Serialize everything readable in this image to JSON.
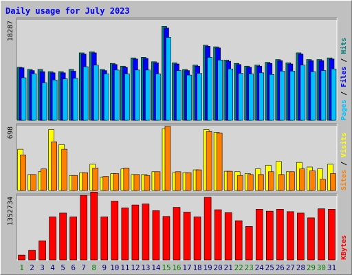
{
  "chart_data": {
    "type": "bar",
    "title": "Daily usage for July 2023",
    "categories": [
      "1",
      "2",
      "3",
      "4",
      "5",
      "6",
      "7",
      "8",
      "9",
      "10",
      "11",
      "12",
      "13",
      "14",
      "15",
      "16",
      "17",
      "18",
      "19",
      "20",
      "21",
      "22",
      "23",
      "24",
      "25",
      "26",
      "27",
      "28",
      "29",
      "30",
      "31"
    ],
    "weekend_days": [
      "1",
      "8",
      "15",
      "16",
      "22",
      "23",
      "29",
      "30"
    ],
    "panels": [
      {
        "id": "hits",
        "y_tick_label": "18287",
        "ylim": [
          0,
          18287
        ],
        "ylabel_parts": [
          "Pages",
          "Files",
          "Hits"
        ],
        "separator": " / ",
        "series": [
          {
            "name": "Hits",
            "color": "#008080",
            "values": [
              9600,
              9200,
              9200,
              8800,
              8800,
              9200,
              12200,
              12400,
              9200,
              10300,
              9800,
              11300,
              11400,
              10600,
              17000,
              10400,
              9200,
              10000,
              13600,
              13300,
              10900,
              10300,
              9800,
              10000,
              10500,
              11000,
              10400,
              12200,
              11000,
              11000,
              11300
            ]
          },
          {
            "name": "Files",
            "color": "#0000ff",
            "values": [
              9500,
              9000,
              8800,
              8600,
              8600,
              8900,
              12000,
              12200,
              9000,
              10100,
              9600,
              11100,
              11200,
              10400,
              16700,
              10200,
              9000,
              9800,
              13400,
              13100,
              10700,
              10100,
              9600,
              9800,
              10300,
              10800,
              10200,
              12000,
              10800,
              10800,
              11100
            ]
          },
          {
            "name": "Pages",
            "color": "#00c0ff",
            "values": [
              7700,
              8400,
              6800,
              7300,
              7500,
              7600,
              9700,
              10000,
              8400,
              9100,
              8400,
              9100,
              9100,
              8400,
              15000,
              9000,
              8200,
              8500,
              11400,
              10900,
              9300,
              8500,
              8400,
              8600,
              8300,
              8900,
              8900,
              10000,
              8800,
              9000,
              9300
            ]
          }
        ]
      },
      {
        "id": "visits",
        "y_tick_label": "698",
        "ylim": [
          0,
          698
        ],
        "ylabel_parts": [
          "Sites",
          "Visits"
        ],
        "separator": " / ",
        "series": [
          {
            "name": "Visits",
            "color": "#ffff00",
            "values": [
              440,
              170,
              200,
              650,
              490,
              160,
              190,
              280,
              140,
              180,
              230,
              170,
              170,
              200,
              660,
              190,
              190,
              220,
              650,
              620,
              205,
              200,
              180,
              230,
              270,
              310,
              200,
              300,
              250,
              230,
              280
            ]
          },
          {
            "name": "Sites",
            "color": "#ff8000",
            "values": [
              380,
              170,
              230,
              520,
              440,
              160,
              190,
              240,
              150,
              180,
              240,
              170,
              160,
              200,
              685,
              200,
              190,
              220,
              630,
              615,
              205,
              160,
              170,
              170,
              200,
              170,
              200,
              230,
              210,
              120,
              180
            ]
          }
        ]
      },
      {
        "id": "kbytes",
        "y_tick_label": "1352734",
        "ylim": [
          0,
          1352734
        ],
        "ylabel_parts": [
          "KBytes"
        ],
        "separator": "",
        "series": [
          {
            "name": "KBytes",
            "color": "#ff0000",
            "values": [
              100000,
              200000,
              400000,
              900000,
              980000,
              900000,
              1350000,
              1420000,
              900000,
              1230000,
              1090000,
              1150000,
              1170000,
              1030000,
              910000,
              1100000,
              1000000,
              900000,
              1310000,
              1050000,
              990000,
              820000,
              700000,
              1060000,
              1020000,
              1060000,
              1010000,
              980000,
              880000,
              1070000,
              1060000
            ]
          }
        ]
      }
    ]
  },
  "colors": {
    "background": "#c0c0c0",
    "plot_background": "#d5d5d5",
    "title_color": "#0000ff",
    "weekday_label": "#000080",
    "weekend_label": "#008000",
    "axis_label": "#000000"
  }
}
